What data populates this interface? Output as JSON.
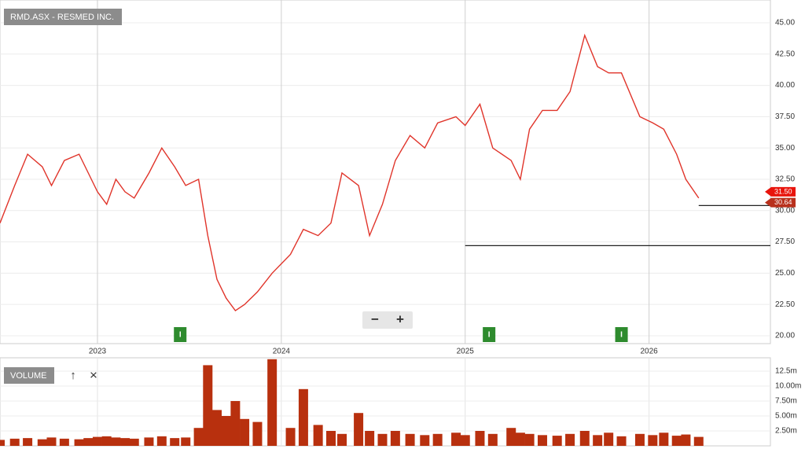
{
  "chart_data": {
    "type": "line",
    "title": "RMD.ASX - RESMED INC.",
    "color": "#e0342a",
    "x": [
      2022.47,
      2022.55,
      2022.62,
      2022.7,
      2022.75,
      2022.82,
      2022.9,
      2022.95,
      2023.0,
      2023.05,
      2023.1,
      2023.15,
      2023.2,
      2023.28,
      2023.35,
      2023.42,
      2023.48,
      2023.55,
      2023.6,
      2023.65,
      2023.7,
      2023.75,
      2023.8,
      2023.87,
      2023.95,
      2024.05,
      2024.12,
      2024.2,
      2024.27,
      2024.33,
      2024.42,
      2024.48,
      2024.55,
      2024.62,
      2024.7,
      2024.78,
      2024.85,
      2024.95,
      2025.0,
      2025.08,
      2025.15,
      2025.25,
      2025.3,
      2025.35,
      2025.42,
      2025.5,
      2025.57,
      2025.65,
      2025.72,
      2025.78,
      2025.85,
      2025.95,
      2026.02,
      2026.08,
      2026.15,
      2026.2,
      2026.27
    ],
    "values": [
      29.0,
      32.0,
      34.5,
      33.5,
      32.0,
      34.0,
      34.5,
      33.0,
      31.5,
      30.5,
      32.5,
      31.5,
      31.0,
      33.0,
      35.0,
      33.5,
      32.0,
      32.5,
      28.0,
      24.5,
      23.0,
      22.0,
      22.5,
      23.5,
      25.0,
      26.5,
      28.5,
      28.0,
      29.0,
      33.0,
      32.0,
      28.0,
      30.5,
      34.0,
      36.0,
      35.0,
      37.0,
      37.5,
      36.8,
      38.5,
      35.0,
      34.0,
      32.5,
      36.5,
      38.0,
      38.0,
      39.5,
      44.0,
      41.5,
      41.0,
      41.0,
      37.5,
      37.0,
      36.5,
      34.5,
      32.5,
      31.0
    ],
    "xlim": [
      2022.47,
      2026.66
    ],
    "xticks": [
      2023,
      2024,
      2025,
      2026
    ],
    "ylim": [
      19.37,
      46.82
    ],
    "yticks": [
      {
        "value": 20,
        "label": "20.00"
      },
      {
        "value": 22.5,
        "label": "22.50"
      },
      {
        "value": 25,
        "label": "25.00"
      },
      {
        "value": 27.5,
        "label": "27.50"
      },
      {
        "value": 30,
        "label": "30.00"
      },
      {
        "value": 32.5,
        "label": "32.50"
      },
      {
        "value": 35,
        "label": "35.00"
      },
      {
        "value": 37.5,
        "label": "37.50"
      },
      {
        "value": 40,
        "label": "40.00"
      },
      {
        "value": 42.5,
        "label": "42.50"
      },
      {
        "value": 45,
        "label": "45.00"
      }
    ],
    "grid": true,
    "hlines": [
      {
        "value": 27.2,
        "from": 2025.0
      },
      {
        "value": 30.4,
        "from": 2026.27
      }
    ],
    "price_tags": [
      {
        "value": 31.5,
        "label": "31.50",
        "color": "#e8140c"
      },
      {
        "value": 30.64,
        "label": "30.64",
        "color": "#b8301c"
      }
    ],
    "events": [
      {
        "x": 2023.45,
        "label": "I"
      },
      {
        "x": 2025.13,
        "label": "I"
      },
      {
        "x": 2025.85,
        "label": "I"
      }
    ],
    "zoom_out": "−",
    "zoom_in": "+",
    "volume": {
      "type": "bar",
      "title": "VOLUME",
      "color": "#b8300e",
      "up_icon": "↑",
      "close_icon": "×",
      "values": [
        1.0,
        1.2,
        1.3,
        1.1,
        1.4,
        1.2,
        1.1,
        1.3,
        1.5,
        1.6,
        1.4,
        1.3,
        1.2,
        1.4,
        1.6,
        1.3,
        1.4,
        3.0,
        13.5,
        6.0,
        5.0,
        7.5,
        4.5,
        4.0,
        14.5,
        3.0,
        9.5,
        3.5,
        2.5,
        2.0,
        5.5,
        2.5,
        2.0,
        2.5,
        2.0,
        1.8,
        2.0,
        2.2,
        1.8,
        2.5,
        2.0,
        3.0,
        2.2,
        2.0,
        1.8,
        1.7,
        2.0,
        2.5,
        1.8,
        2.2,
        1.6,
        2.0,
        1.8,
        2.2,
        1.7,
        1.9,
        1.5
      ],
      "ylim": [
        0,
        14.74
      ],
      "yticks": [
        {
          "value": 2.5,
          "label": "2.50m"
        },
        {
          "value": 5,
          "label": "5.00m"
        },
        {
          "value": 7.5,
          "label": "7.50m"
        },
        {
          "value": 10,
          "label": "10.00m"
        },
        {
          "value": 12.5,
          "label": "12.5m"
        }
      ]
    }
  }
}
